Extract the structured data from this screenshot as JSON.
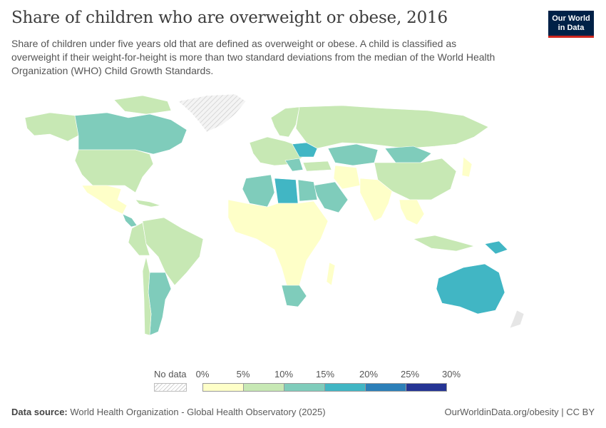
{
  "title": "Share of children who are overweight or obese, 2016",
  "subtitle": "Share of children under five years old that are defined as overweight or obese. A child is classified as overweight if their weight-for-height is more than two standard deviations from the median of the World Health Organization (WHO) Child Growth Standards.",
  "logo": {
    "line1": "Our World",
    "line2": "in Data"
  },
  "legend": {
    "no_data_label": "No data",
    "ticks": [
      "0%",
      "5%",
      "10%",
      "15%",
      "20%",
      "25%",
      "30%"
    ],
    "bin_colors": [
      "#feffc8",
      "#c7e8b4",
      "#7fccbb",
      "#41b6c4",
      "#2c7fb8",
      "#253494"
    ],
    "no_data_color": "#e6e6e6"
  },
  "footer": {
    "source_label": "Data source:",
    "source_text": "World Health Organization - Global Health Observatory (2025)",
    "right_text": "OurWorldinData.org/obesity | CC BY"
  }
}
